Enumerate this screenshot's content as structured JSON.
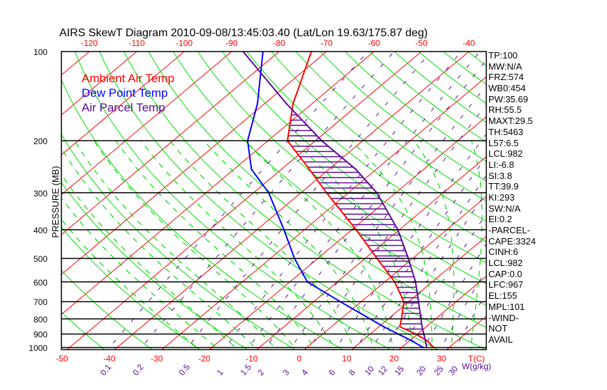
{
  "title": "AIRS SkewT Diagram 2010-09-08/13:45:03.40 (Lat/Lon 19.63/175.87 deg)",
  "y_axis_label": "PRESSURE (MB)",
  "legend": [
    {
      "label": "Ambient Air Temp",
      "color": "#ff0000"
    },
    {
      "label": "Dew Point Temp",
      "color": "#0000ff"
    },
    {
      "label": "Air Parcel Temp",
      "color": "#5a0a9a"
    }
  ],
  "stats": [
    "TP:100",
    "MW:N/A",
    "FRZ:574",
    "WB0:454",
    "PW:35.69",
    "RH:55.5",
    "MAXT:29.5",
    "TH:5463",
    "L57:6.5",
    "LCL:982",
    "LI:-6.8",
    "SI:3.8",
    "TT:39.9",
    "KI:293",
    "SW:N/A",
    "EI:0.2",
    "-PARCEL-",
    "CAPE:3324",
    "CINH:6",
    "LCL:982",
    "CAP:0.0",
    "LFC:967",
    "EL:155",
    "MPL:101",
    "-WIND-",
    "NOT",
    "AVAIL"
  ],
  "chart_data": {
    "type": "line",
    "subtype": "skew-t log-p",
    "title": "AIRS SkewT Diagram 2010-09-08/13:45:03.40 (Lat/Lon 19.63/175.87 deg)",
    "ylabel": "PRESSURE (MB)",
    "xlabel": "T(C)",
    "mixing_ratio_label": "W(g/kg)",
    "ylim": [
      1050,
      100
    ],
    "pressure_ticks": [
      100,
      200,
      300,
      400,
      500,
      600,
      700,
      800,
      900,
      1000
    ],
    "top_temp_ticks": [
      -120,
      -110,
      -100,
      -90,
      -80,
      -70,
      -60,
      -50,
      -40
    ],
    "bottom_temp_ticks": [
      -50,
      -40,
      -30,
      -20,
      -10,
      0,
      10,
      20,
      30
    ],
    "mixing_ratio_ticks": [
      "0.1",
      "0.2",
      "0.5",
      "1",
      "1.5",
      "2",
      "3",
      "4",
      "6",
      "8",
      "10",
      "12",
      "15",
      "20",
      "25",
      "30"
    ],
    "pressure": [
      100,
      150,
      200,
      250,
      300,
      400,
      500,
      600,
      700,
      800,
      850,
      900,
      950,
      1000
    ],
    "series": [
      {
        "name": "Ambient Air Temp",
        "color": "#ff0000",
        "values": [
          -73.2,
          -64.0,
          -55.9,
          -44.1,
          -34.6,
          -19.1,
          -7.5,
          2.1,
          9.0,
          12.8,
          14.4,
          19.6,
          23.8,
          26.8
        ]
      },
      {
        "name": "Dew Point Temp",
        "color": "#0000ff",
        "values": [
          -83.4,
          -71.5,
          -64.3,
          -56.3,
          -46.8,
          -34.3,
          -24.9,
          -16.3,
          -4.4,
          6.2,
          11.0,
          15.9,
          20.6,
          24.6
        ]
      },
      {
        "name": "Air Parcel Temp",
        "color": "#5a0a9a",
        "values": [
          -87.6,
          -65.4,
          -48.7,
          -34.3,
          -24.0,
          -10.3,
          -0.9,
          6.5,
          12.1,
          16.9,
          19.1,
          21.3,
          23.4,
          25.3
        ]
      }
    ],
    "grid": true
  }
}
